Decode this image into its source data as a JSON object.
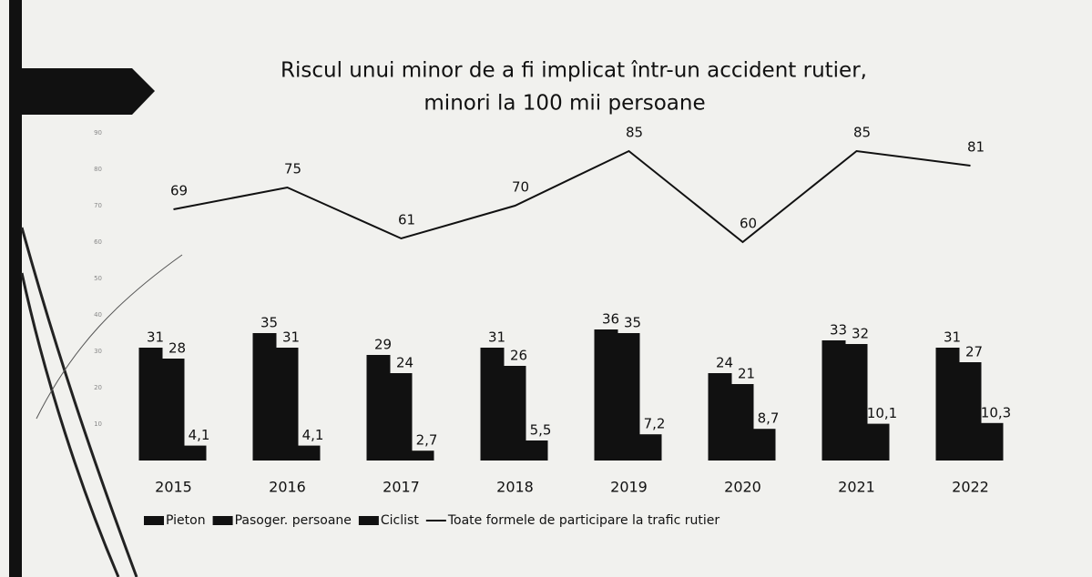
{
  "chart_data": {
    "type": "bar",
    "title": "Riscul unui minor de a fi implicat într-un accident rutier,",
    "subtitle": "minori la 100 mii persoane",
    "categories": [
      "2015",
      "2016",
      "2017",
      "2018",
      "2019",
      "2020",
      "2021",
      "2022"
    ],
    "series": [
      {
        "name": "Pieton",
        "type": "bar",
        "color": "#111111",
        "values": [
          31,
          35,
          29,
          31,
          36,
          24,
          33,
          31
        ]
      },
      {
        "name": "Pasoger. persoane",
        "type": "bar",
        "color": "#111111",
        "values": [
          28,
          31,
          24,
          26,
          35,
          21,
          32,
          27
        ]
      },
      {
        "name": "Ciclist",
        "type": "bar",
        "color": "#111111",
        "values": [
          4.1,
          4.1,
          2.7,
          5.5,
          7.2,
          8.7,
          10.1,
          10.3
        ],
        "value_labels": [
          "4,1",
          "4,1",
          "2,7",
          "5,5",
          "7,2",
          "8,7",
          "10,1",
          "10,3"
        ]
      },
      {
        "name": "Toate formele de participare la trafic rutier",
        "type": "line",
        "color": "#111111",
        "values": [
          69,
          75,
          61,
          70,
          85,
          60,
          85,
          81
        ]
      }
    ],
    "ylim": [
      0,
      90
    ],
    "yticks": [
      10,
      20,
      30,
      40,
      50,
      60,
      70,
      80,
      90
    ],
    "grid": false
  }
}
